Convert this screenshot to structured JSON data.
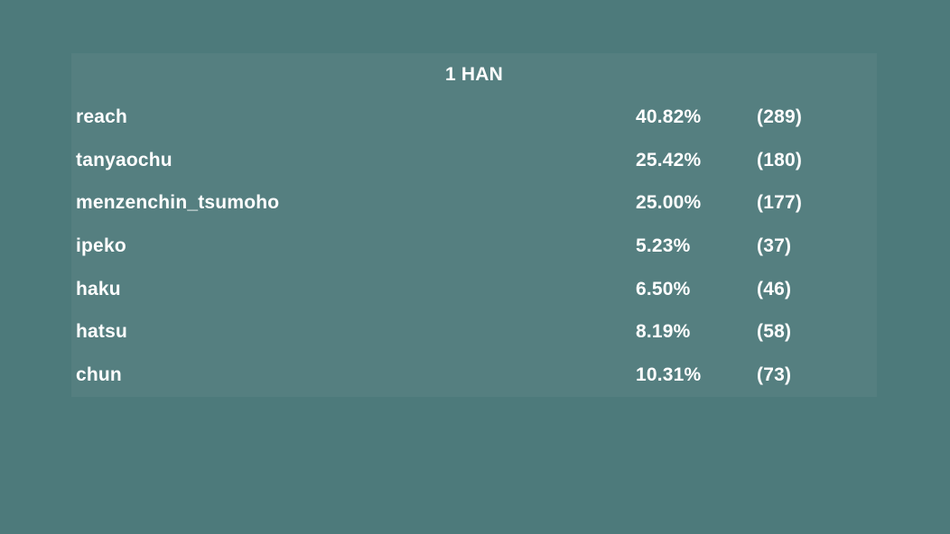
{
  "panel": {
    "title": "1 HAN",
    "rows": [
      {
        "name": "reach",
        "percent": "40.82%",
        "count": "(289)"
      },
      {
        "name": "tanyaochu",
        "percent": "25.42%",
        "count": "(180)"
      },
      {
        "name": "menzenchin_tsumoho",
        "percent": "25.00%",
        "count": "(177)"
      },
      {
        "name": "ipeko",
        "percent": "5.23%",
        "count": "(37)"
      },
      {
        "name": "haku",
        "percent": "6.50%",
        "count": "(46)"
      },
      {
        "name": "hatsu",
        "percent": "8.19%",
        "count": "(58)"
      },
      {
        "name": "chun",
        "percent": "10.31%",
        "count": "(73)"
      }
    ]
  },
  "colors": {
    "background": "#4d7a7b",
    "panel": "#557f80",
    "text": "#ffffff"
  }
}
